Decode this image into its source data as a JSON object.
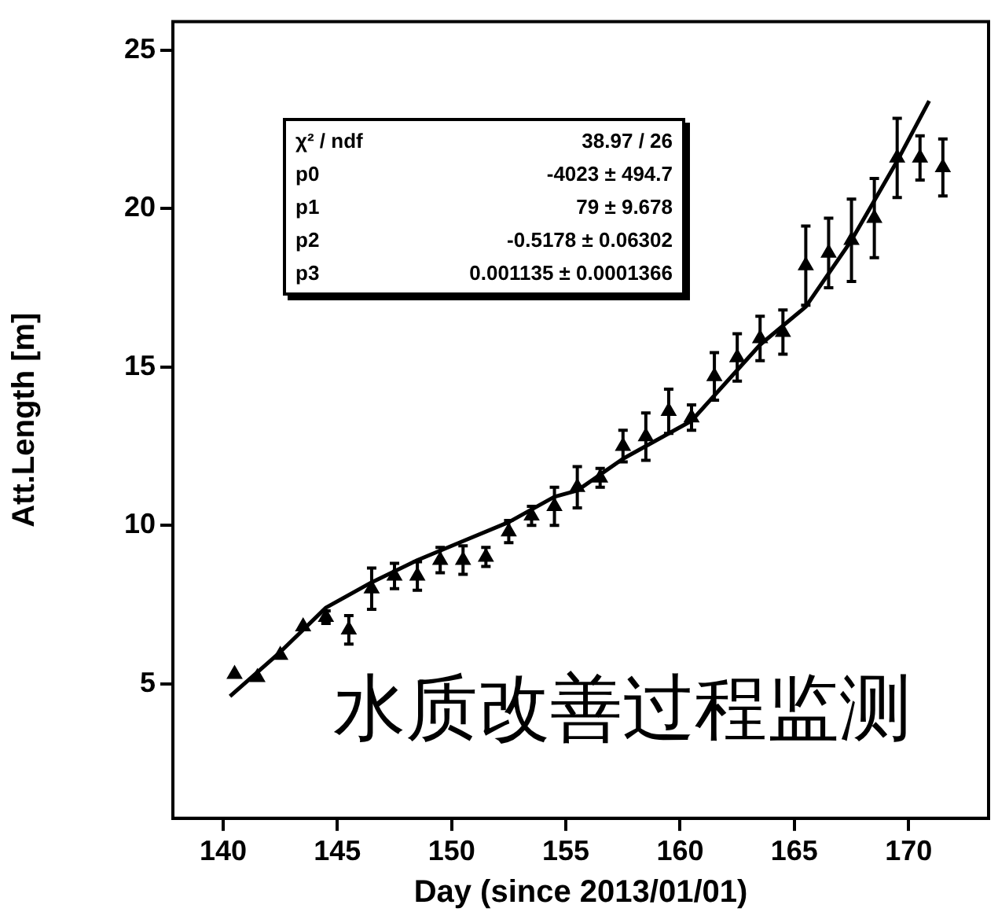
{
  "chart_data": {
    "type": "scatter",
    "xlabel": "Day (since 2013/01/01)",
    "ylabel": "Att.Length [m]",
    "xlim": [
      137.8,
      173.5
    ],
    "xticks": [
      140,
      145,
      150,
      155,
      160,
      165,
      170
    ],
    "ylim": [
      0.75,
      25.9
    ],
    "yticks": [
      5,
      10,
      15,
      20,
      25
    ],
    "grid": false,
    "legend": false,
    "annotations": [
      "χ² / ndf",
      "38.97 / 26",
      "p0",
      "-4023 ± 494.7",
      "p1",
      "79 ± 9.678",
      "p2",
      "-0.5178 ± 0.06302",
      "p3",
      "0.001135 ± 0.0001366",
      "水质改善过程监测"
    ],
    "series": [
      {
        "type": "scatter",
        "marker": "triangle",
        "color": "#000000",
        "x": [
          140.5,
          141.5,
          142.5,
          143.5,
          144.5,
          145.5,
          146.5,
          147.5,
          148.5,
          149.5,
          150.5,
          151.5,
          152.5,
          153.5,
          154.5,
          155.5,
          156.5,
          157.5,
          158.5,
          159.5,
          160.5,
          161.5,
          162.5,
          163.5,
          164.5,
          165.5,
          166.5,
          167.5,
          168.5,
          169.5,
          170.5,
          171.5
        ],
        "values": [
          5.3,
          5.2,
          5.9,
          6.8,
          7.1,
          6.7,
          8.0,
          8.4,
          8.4,
          8.9,
          8.9,
          9.0,
          9.8,
          10.3,
          10.6,
          11.2,
          11.5,
          12.5,
          12.8,
          13.6,
          13.4,
          14.7,
          15.3,
          15.9,
          16.1,
          18.2,
          18.6,
          19.0,
          19.7,
          21.6,
          21.6,
          21.3
        ],
        "errors": [
          null,
          null,
          null,
          null,
          0.2,
          0.45,
          0.65,
          0.4,
          0.45,
          0.4,
          0.45,
          0.3,
          0.35,
          0.3,
          0.6,
          0.65,
          0.3,
          0.5,
          0.75,
          0.7,
          0.4,
          0.75,
          0.75,
          0.7,
          0.7,
          1.25,
          1.1,
          1.3,
          1.25,
          1.25,
          0.7,
          0.9
        ]
      },
      {
        "type": "line",
        "marker": "none",
        "line_style": "solid",
        "color": "#000000",
        "x": [
          140.3,
          142.5,
          144.5,
          146.5,
          148.5,
          150.5,
          152.5,
          154.5,
          155.5,
          157.5,
          160.5,
          163.5,
          165.5,
          167.5,
          169.5,
          170.9
        ],
        "values": [
          4.6,
          6.0,
          7.4,
          8.2,
          8.9,
          9.5,
          10.1,
          10.9,
          11.1,
          12.1,
          13.3,
          15.7,
          16.9,
          19.0,
          21.5,
          23.4
        ]
      }
    ]
  }
}
